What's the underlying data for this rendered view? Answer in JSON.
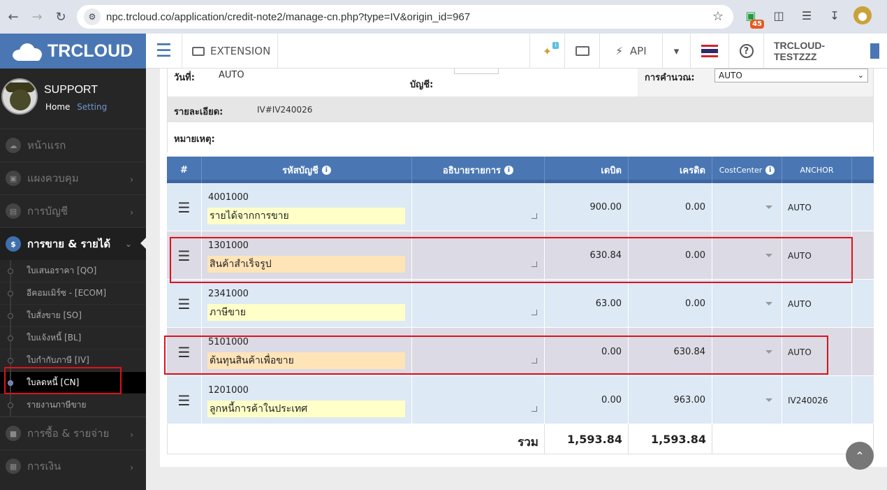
{
  "browser": {
    "url": "npc.trcloud.co/application/credit-note2/manage-cn.php?type=IV&origin_id=967",
    "ext_badge": "45"
  },
  "header": {
    "logo": "TRCLOUD",
    "extension": "EXTENSION",
    "api": "API",
    "notif_badge": "i",
    "company": "TRCLOUD-TESTZZZ",
    "help": "?"
  },
  "sidebar": {
    "user": "SUPPORT",
    "home": "Home",
    "setting": "Setting",
    "menu": [
      {
        "label": "หน้าแรก"
      },
      {
        "label": "แผงควบคุม"
      },
      {
        "label": "การบัญชี"
      },
      {
        "label": "การขาย & รายได้"
      }
    ],
    "sub": [
      {
        "label": "ใบเสนอราคา [QO]"
      },
      {
        "label": "อีคอมเมิร์ซ - [ECOM]"
      },
      {
        "label": "ใบสั่งขาย [SO]"
      },
      {
        "label": "ใบแจ้งหนี้ [BL]"
      },
      {
        "label": "ใบกำกับภาษี [IV]"
      },
      {
        "label": "ใบลดหนี้ [CN]"
      },
      {
        "label": "รายงานภาษีขาย"
      }
    ],
    "menu2": [
      {
        "label": "การซื้อ & รายจ่าย"
      },
      {
        "label": "การเงิน"
      }
    ]
  },
  "form": {
    "date_label": "วันที่:",
    "date_value": "AUTO",
    "account_label": "บัญชี:",
    "calc_label": "การคำนวณ:",
    "calc_value": "AUTO",
    "detail_label": "รายละเอียด:",
    "detail_value": "IV#IV240026",
    "note_label": "หมายเหตุ:"
  },
  "table": {
    "headers": {
      "hash": "#",
      "account": "รหัสบัญชี",
      "desc": "อธิบายรายการ",
      "debit": "เดบิต",
      "credit": "เครดิต",
      "cc": "CostCenter",
      "anchor": "ANCHOR"
    },
    "rows": [
      {
        "code": "4001000",
        "name": "รายได้จากการขาย",
        "debit": "900.00",
        "credit": "0.00",
        "anchor": "AUTO"
      },
      {
        "code": "1301000",
        "name": "สินค้าสำเร็จรูป",
        "debit": "630.84",
        "credit": "0.00",
        "anchor": "AUTO"
      },
      {
        "code": "2341000",
        "name": "ภาษีขาย",
        "debit": "63.00",
        "credit": "0.00",
        "anchor": "AUTO"
      },
      {
        "code": "5101000",
        "name": "ต้นทุนสินค้าเพื่อขาย",
        "debit": "0.00",
        "credit": "630.84",
        "anchor": "AUTO"
      },
      {
        "code": "1201000",
        "name": "ลูกหนี้การค้าในประเทศ",
        "debit": "0.00",
        "credit": "963.00",
        "anchor": "IV240026"
      }
    ],
    "total_label": "รวม",
    "total_debit": "1,593.84",
    "total_credit": "1,593.84"
  }
}
